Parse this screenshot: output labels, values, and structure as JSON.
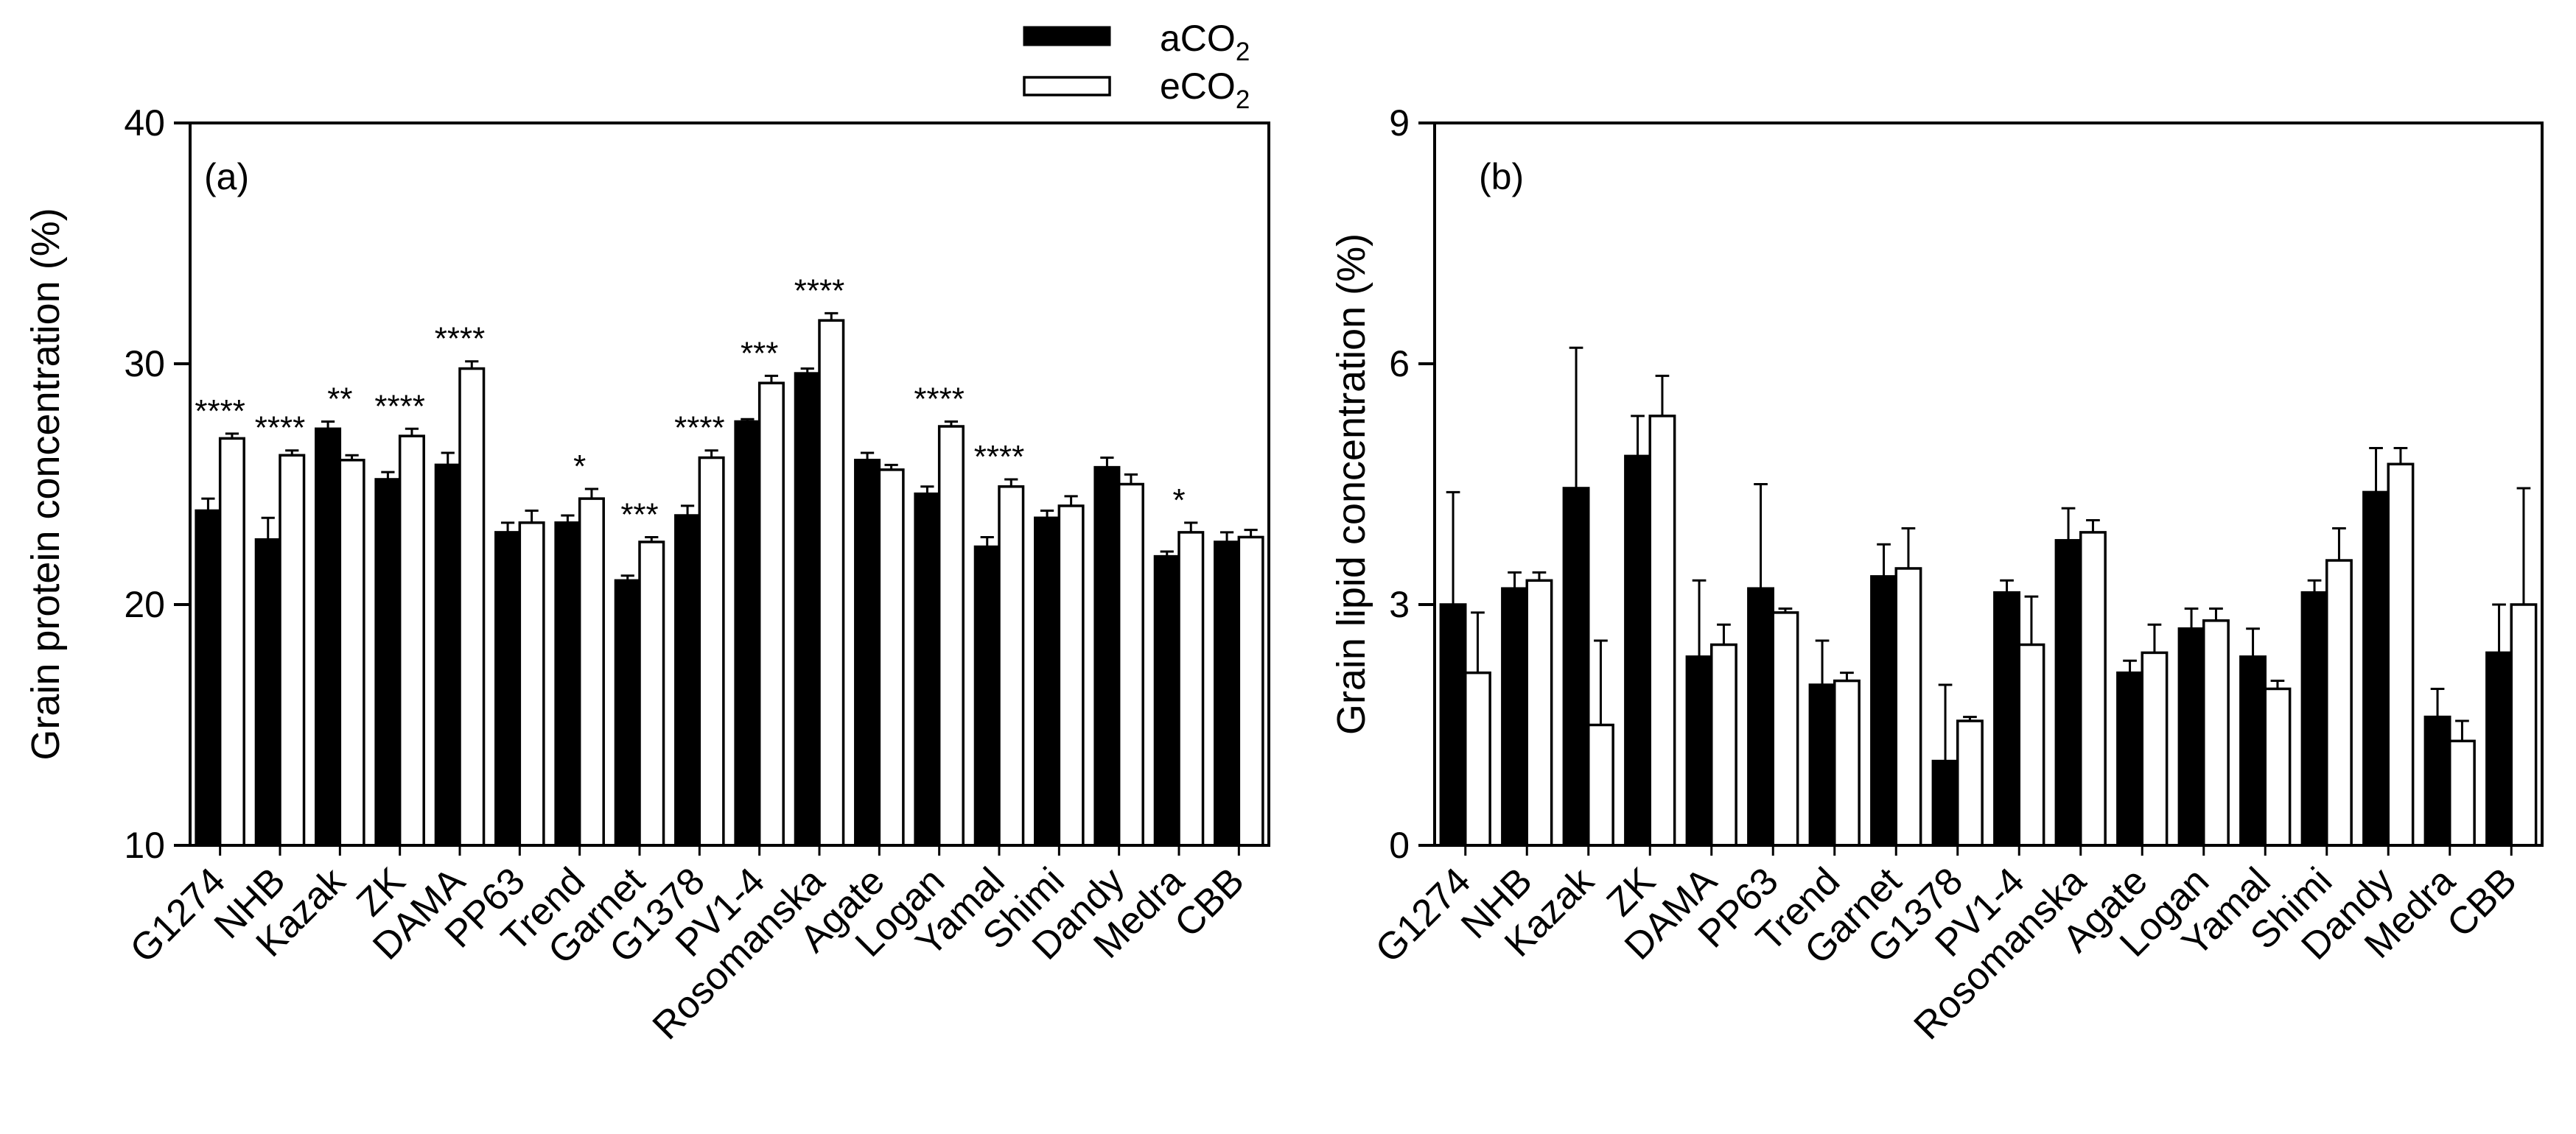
{
  "legend": {
    "series_a": {
      "label": "aCO",
      "sub": "2"
    },
    "series_b": {
      "label": "eCO",
      "sub": "2"
    }
  },
  "colors": {
    "aCO2": "#000000",
    "eCO2": "#ffffff",
    "stroke": "#000000"
  },
  "chart_data": [
    {
      "type": "bar",
      "panel": "(a)",
      "ylabel": "Grain protein concentration (%)",
      "xlabel": "",
      "ylim": [
        10,
        40
      ],
      "yticks": [
        10,
        20,
        30,
        40
      ],
      "grid": false,
      "legend_position": "top-center",
      "categories": [
        "G1274",
        "NHB",
        "Kazak",
        "ZK",
        "DAMA",
        "PP63",
        "Trend",
        "Garnet",
        "G1378",
        "PV1-4",
        "Rosomanska",
        "Agate",
        "Logan",
        "Yamal",
        "Shimi",
        "Dandy",
        "Medra",
        "CBB"
      ],
      "series": [
        {
          "name": "aCO2",
          "values": [
            23.9,
            22.7,
            27.3,
            25.2,
            25.8,
            23.0,
            23.4,
            21.0,
            23.7,
            27.6,
            29.6,
            26.0,
            24.6,
            22.4,
            23.6,
            25.7,
            22.0,
            22.6
          ],
          "errors": [
            0.5,
            0.9,
            0.3,
            0.3,
            0.5,
            0.4,
            0.3,
            0.2,
            0.4,
            0.1,
            0.2,
            0.3,
            0.3,
            0.4,
            0.3,
            0.4,
            0.2,
            0.4
          ]
        },
        {
          "name": "eCO2",
          "values": [
            26.9,
            26.2,
            26.0,
            27.0,
            29.8,
            23.4,
            24.4,
            22.6,
            26.1,
            29.2,
            31.8,
            25.6,
            27.4,
            24.9,
            24.1,
            25.0,
            23.0,
            22.8
          ],
          "errors": [
            0.2,
            0.2,
            0.2,
            0.3,
            0.3,
            0.5,
            0.4,
            0.2,
            0.3,
            0.3,
            0.3,
            0.2,
            0.2,
            0.3,
            0.4,
            0.4,
            0.4,
            0.3
          ]
        }
      ],
      "annotations": [
        "****",
        "****",
        "**",
        "****",
        "****",
        "",
        "*",
        "***",
        "****",
        "***",
        "****",
        "",
        "****",
        "****",
        "",
        "",
        "*",
        ""
      ]
    },
    {
      "type": "bar",
      "panel": "(b)",
      "ylabel": "Grain lipid concentration (%)",
      "xlabel": "",
      "ylim": [
        0,
        9
      ],
      "yticks": [
        0,
        3,
        6,
        9
      ],
      "grid": false,
      "categories": [
        "G1274",
        "NHB",
        "Kazak",
        "ZK",
        "DAMA",
        "PP63",
        "Trend",
        "Garnet",
        "G1378",
        "PV1-4",
        "Rosomanska",
        "Agate",
        "Logan",
        "Yamal",
        "Shimi",
        "Dandy",
        "Medra",
        "CBB"
      ],
      "series": [
        {
          "name": "aCO2",
          "values": [
            3.0,
            3.2,
            4.45,
            4.85,
            2.35,
            3.2,
            2.0,
            3.35,
            1.05,
            3.15,
            3.8,
            2.15,
            2.7,
            2.35,
            3.15,
            4.4,
            1.6,
            2.4
          ],
          "errors": [
            1.4,
            0.2,
            1.75,
            0.5,
            0.95,
            1.3,
            0.55,
            0.4,
            0.95,
            0.15,
            0.4,
            0.15,
            0.25,
            0.35,
            0.15,
            0.55,
            0.35,
            0.6
          ]
        },
        {
          "name": "eCO2",
          "values": [
            2.15,
            3.3,
            1.5,
            5.35,
            2.5,
            2.9,
            2.05,
            3.45,
            1.55,
            2.5,
            3.9,
            2.4,
            2.8,
            1.95,
            3.55,
            4.75,
            1.3,
            3.0
          ],
          "errors": [
            0.75,
            0.1,
            1.05,
            0.5,
            0.25,
            0.05,
            0.1,
            0.5,
            0.05,
            0.6,
            0.15,
            0.35,
            0.15,
            0.1,
            0.4,
            0.2,
            0.25,
            1.45
          ]
        }
      ],
      "annotations": []
    }
  ]
}
